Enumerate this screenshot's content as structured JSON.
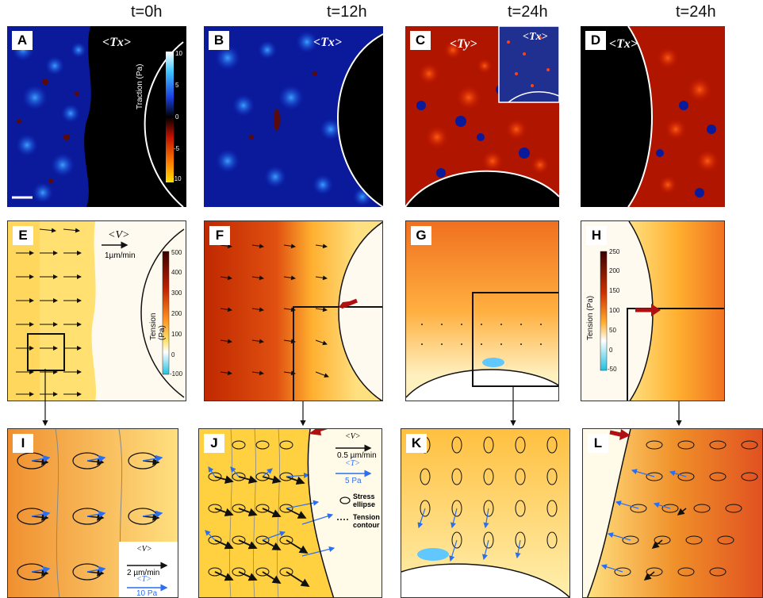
{
  "time_labels": [
    "t=0h",
    "t=12h",
    "t=24h",
    "t=24h"
  ],
  "panel_letters": [
    "A",
    "B",
    "C",
    "D",
    "E",
    "F",
    "G",
    "H",
    "I",
    "J",
    "K",
    "L"
  ],
  "tx_label": "<Tx>",
  "ty_label": "<Ty>",
  "traction_colorbar": {
    "title": "Traction (Pa)",
    "ticks": [
      "10",
      "5",
      "0",
      "-5",
      "-10"
    ]
  },
  "tension_colorbar_E": {
    "title": "Tension (Pa)",
    "ticks": [
      "500",
      "400",
      "300",
      "200",
      "100",
      "0",
      "-100"
    ]
  },
  "tension_colorbar_H": {
    "title": "Tension (Pa)",
    "ticks": [
      "250",
      "200",
      "150",
      "100",
      "50",
      "0",
      "-50"
    ]
  },
  "velocity_legend_E": {
    "symbol": "<V>",
    "scale": "1µm/min"
  },
  "legend_I": {
    "v_symbol": "<V>",
    "v_scale": "2 µm/min",
    "t_symbol": "<T>",
    "t_scale": "10 Pa"
  },
  "legend_J": {
    "v_symbol": "<V>",
    "v_scale": "0.5 µm/min",
    "t_symbol": "<T>",
    "t_scale": "5 Pa",
    "ellipse_label": "Stress ellipse",
    "contour_label": "Tension contour"
  }
}
